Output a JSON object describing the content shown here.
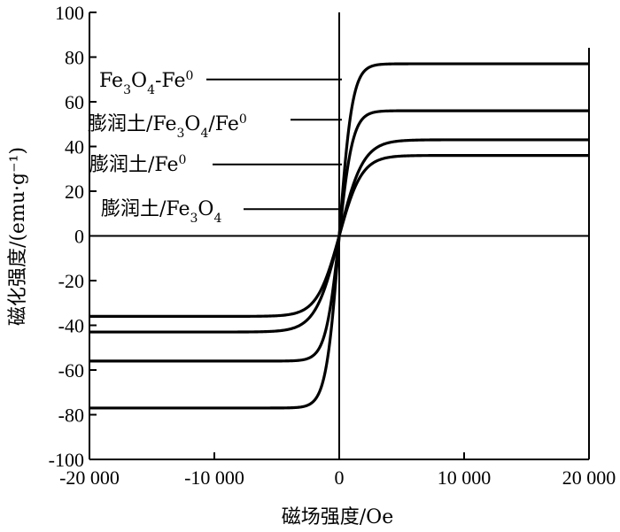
{
  "chart_data": {
    "type": "line",
    "title": "",
    "xlabel": "磁场强度/Oe",
    "ylabel": "磁化强度/(emu·g⁻¹)",
    "xlim": [
      -20000,
      20000
    ],
    "ylim": [
      -100,
      100
    ],
    "x_ticks": [
      -20000,
      -10000,
      0,
      10000,
      20000
    ],
    "x_tick_labels": [
      "-20 000",
      "-10 000",
      "0",
      "10 000",
      "20 000"
    ],
    "y_ticks": [
      -100,
      -80,
      -60,
      -40,
      -20,
      0,
      20,
      40,
      60,
      80,
      100
    ],
    "y_tick_labels": [
      "-100",
      "-80",
      "-60",
      "-40",
      "-20",
      "0",
      "20",
      "40",
      "60",
      "80",
      "100"
    ],
    "grid": false,
    "legend": "callout labels with leader lines",
    "series": [
      {
        "name": "Fe3O4-Fe0",
        "label_parts": [
          [
            "Fe",
            "n"
          ],
          [
            "3",
            "sub"
          ],
          [
            "O",
            "n"
          ],
          [
            "4",
            "sub"
          ],
          [
            "-Fe",
            "n"
          ],
          [
            "0",
            "sup"
          ]
        ],
        "ms": 77,
        "k": 1050,
        "pointer_y": 70
      },
      {
        "name": "膨润土/Fe3O4/Fe0",
        "label_parts": [
          [
            "膨润土/Fe",
            "n"
          ],
          [
            "3",
            "sub"
          ],
          [
            "O",
            "n"
          ],
          [
            "4",
            "sub"
          ],
          [
            "/Fe",
            "n"
          ],
          [
            "0",
            "sup"
          ]
        ],
        "ms": 56,
        "k": 1100,
        "pointer_y": 52
      },
      {
        "name": "膨润土/Fe0",
        "label_parts": [
          [
            "膨润土/Fe",
            "n"
          ],
          [
            "0",
            "sup"
          ]
        ],
        "ms": 43,
        "k": 1900,
        "pointer_y": 32
      },
      {
        "name": "膨润土/Fe3O4",
        "label_parts": [
          [
            "膨润土/Fe",
            "n"
          ],
          [
            "3",
            "sub"
          ],
          [
            "O",
            "n"
          ],
          [
            "4",
            "sub"
          ]
        ],
        "ms": 36,
        "k": 1800,
        "pointer_y": 12
      }
    ]
  }
}
